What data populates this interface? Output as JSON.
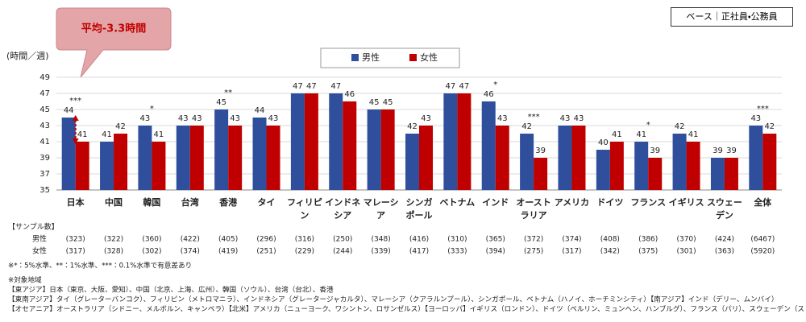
{
  "chart_data": {
    "type": "bar",
    "base_note": "ベース｜正社員・公務員",
    "callout": "平均-3.3時間",
    "y_axis_label": "(時間／週)",
    "categories": [
      "日本",
      "中国",
      "韓国",
      "台湾",
      "香港",
      "タイ",
      "フィリピ\nン",
      "インドネ\nシア",
      "マレーシ\nア",
      "シンガ\nポール",
      "ベトナム",
      "インド",
      "オースト\nラリア",
      "アメリカ",
      "ドイツ",
      "フランス",
      "イギリス",
      "スウェー\nデン",
      "全体"
    ],
    "series": [
      {
        "name": "男性",
        "color": "#2f4f9c",
        "values": [
          44,
          41,
          43,
          43,
          45,
          44,
          47,
          47,
          45,
          42,
          47,
          46,
          42,
          43,
          40,
          41,
          42,
          39,
          43
        ]
      },
      {
        "name": "女性",
        "color": "#c00000",
        "values": [
          41,
          42,
          41,
          43,
          43,
          43,
          47,
          46,
          45,
          43,
          47,
          43,
          39,
          43,
          41,
          39,
          41,
          39,
          42
        ]
      }
    ],
    "significance": [
      "***",
      null,
      "*",
      null,
      "**",
      null,
      null,
      null,
      null,
      null,
      null,
      "*",
      "***",
      null,
      null,
      "*",
      null,
      null,
      "***"
    ],
    "ylim": [
      35,
      49
    ],
    "yticks": [
      35,
      37,
      39,
      41,
      43,
      45,
      47,
      49
    ],
    "grid": true,
    "legend": "top",
    "sample_table": {
      "title": "【サンプル数】",
      "rows": [
        {
          "label": "男性",
          "values": [
            "(323)",
            "(322)",
            "(360)",
            "(422)",
            "(405)",
            "(296)",
            "(316)",
            "(250)",
            "(348)",
            "(416)",
            "(310)",
            "(365)",
            "(372)",
            "(374)",
            "(408)",
            "(386)",
            "(370)",
            "(424)",
            "(6467)"
          ]
        },
        {
          "label": "女性",
          "values": [
            "(317)",
            "(328)",
            "(302)",
            "(374)",
            "(419)",
            "(251)",
            "(229)",
            "(244)",
            "(339)",
            "(417)",
            "(333)",
            "(394)",
            "(275)",
            "(317)",
            "(342)",
            "(375)",
            "(301)",
            "(363)",
            "(5920)"
          ]
        }
      ]
    },
    "notes": [
      "※*：5%水準、**：1%水準、***：0.1%水準で有意差あり",
      "※対象地域",
      "【東アジア】日本（東京、大阪、愛知）、中国（北京、上海、広州）、韓国（ソウル）、台湾（台北）、香港",
      "【東南アジア】タイ（グレーターバンコク）、フィリピン（メトロマニラ）、インドネシア（グレータージャカルタ）、マレーシア（クアラルンプール）、シンガポール、ベトナム（ハノイ、ホーチミンシティ）【南アジア】インド（デリー、ムンバイ）",
      "【オセアニア】オーストラリア（シドニー、メルボルン、キャンベラ）【北米】アメリカ（ニューヨーク、ワシントン、ロサンゼルス）【ヨーロッパ】イギリス（ロンドン）、ドイツ（ベルリン、ミュンヘン、ハンブルグ）、フランス（パリ）、スウェーデン（ストックホルム）"
    ]
  }
}
